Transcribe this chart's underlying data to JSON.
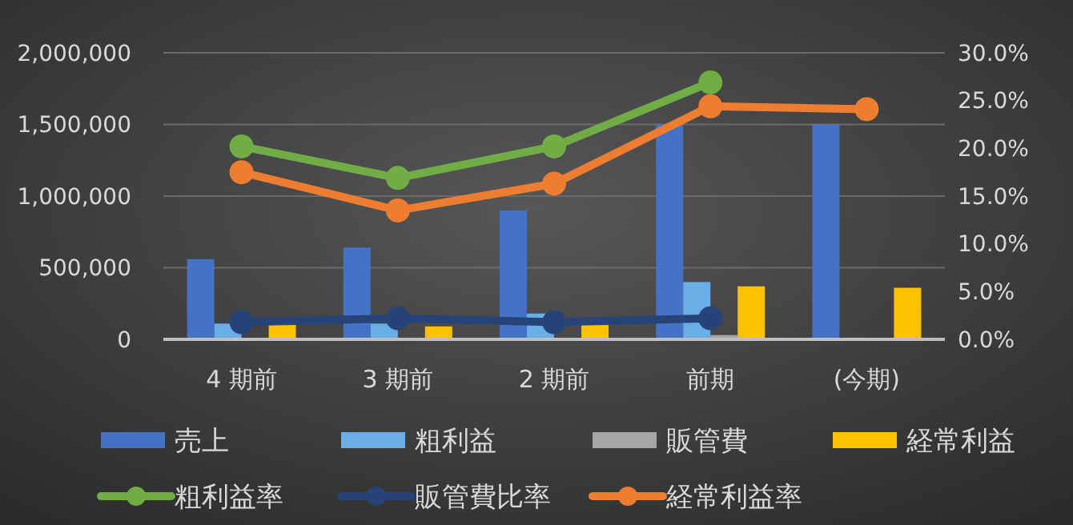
{
  "chart_data": {
    "type": "bar",
    "categories": [
      "4 期前",
      "3 期前",
      "2 期前",
      "前期",
      "(今期)"
    ],
    "series": [
      {
        "name": "売上",
        "color": "#4472c4",
        "values": [
          560000,
          640000,
          900000,
          1500000,
          1500000
        ]
      },
      {
        "name": "粗利益",
        "color": "#6aaee8",
        "values": [
          110000,
          110000,
          180000,
          400000,
          null
        ]
      },
      {
        "name": "販管費",
        "color": "#a5a5a5",
        "values": [
          null,
          null,
          null,
          30000,
          null
        ]
      },
      {
        "name": "経常利益",
        "color": "#ffc000",
        "values": [
          100000,
          90000,
          100000,
          370000,
          360000
        ]
      },
      {
        "name": "粗利益率",
        "type": "line",
        "axis": "y2",
        "color": "#70ad47",
        "values": [
          20.2,
          16.9,
          20.2,
          26.9,
          null
        ]
      },
      {
        "name": "販管費比率",
        "type": "line",
        "axis": "y2",
        "color": "#264478",
        "values": [
          1.8,
          2.2,
          1.8,
          2.2,
          null
        ]
      },
      {
        "name": "経常利益率",
        "type": "line",
        "axis": "y2",
        "color": "#ed7d31",
        "values": [
          17.5,
          13.5,
          16.3,
          24.4,
          24.1
        ]
      }
    ],
    "ylim": [
      0,
      2000000
    ],
    "yticks": [
      {
        "value": 0,
        "label": "0"
      },
      {
        "value": 500000,
        "label": "500,000"
      },
      {
        "value": 1000000,
        "label": "1,000,000"
      },
      {
        "value": 1500000,
        "label": "1,500,000"
      },
      {
        "value": 2000000,
        "label": "2,000,000"
      }
    ],
    "y2lim": [
      0,
      30
    ],
    "y2ticks": [
      {
        "value": 0,
        "label": "0.0%"
      },
      {
        "value": 5,
        "label": "5.0%"
      },
      {
        "value": 10,
        "label": "10.0%"
      },
      {
        "value": 15,
        "label": "15.0%"
      },
      {
        "value": 20,
        "label": "20.0%"
      },
      {
        "value": 25,
        "label": "25.0%"
      },
      {
        "value": 30,
        "label": "30.0%"
      }
    ],
    "grid": "y",
    "legend": "bottom",
    "marker": "circle",
    "line_style": "solid"
  }
}
